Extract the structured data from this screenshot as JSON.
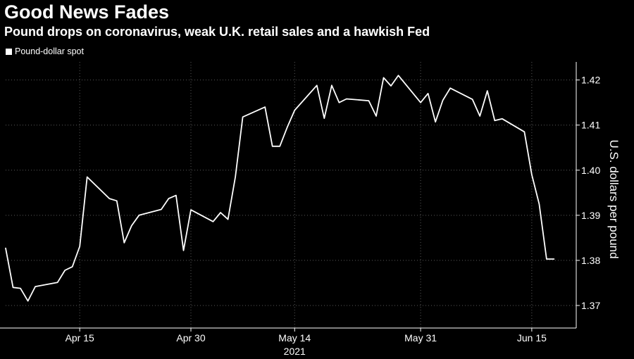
{
  "colors": {
    "background": "#000000",
    "line": "#ffffff",
    "grid": "#5a5a5a",
    "text": "#ffffff"
  },
  "chart_data": {
    "type": "line",
    "title": "Good News Fades",
    "subtitle": "Pound drops on coronavirus, weak U.K. retail sales and a hawkish Fed",
    "xlabel": "",
    "ylabel": "U.S. dollars per pound",
    "ylim": [
      1.365,
      1.424
    ],
    "y_ticks": [
      1.37,
      1.38,
      1.39,
      1.4,
      1.41,
      1.42
    ],
    "y_tick_labels": [
      "1.37",
      "1.38",
      "1.39",
      "1.40",
      "1.41",
      "1.42"
    ],
    "x_range": [
      "2021-04-05",
      "2021-06-21"
    ],
    "x_ticks": [
      {
        "date": "2021-04-15",
        "label": "Apr 15"
      },
      {
        "date": "2021-04-30",
        "label": "Apr 30"
      },
      {
        "date": "2021-05-14",
        "label": "May 14"
      },
      {
        "date": "2021-05-31",
        "label": "May 31"
      },
      {
        "date": "2021-06-15",
        "label": "Jun 15"
      }
    ],
    "x_year_label": "2021",
    "grid": true,
    "legend": "top-left",
    "series": [
      {
        "name": "Pound-dollar spot",
        "x": [
          "2021-04-05",
          "2021-04-06",
          "2021-04-07",
          "2021-04-08",
          "2021-04-09",
          "2021-04-12",
          "2021-04-13",
          "2021-04-14",
          "2021-04-15",
          "2021-04-16",
          "2021-04-19",
          "2021-04-20",
          "2021-04-21",
          "2021-04-22",
          "2021-04-23",
          "2021-04-26",
          "2021-04-27",
          "2021-04-28",
          "2021-04-29",
          "2021-04-30",
          "2021-05-03",
          "2021-05-04",
          "2021-05-05",
          "2021-05-06",
          "2021-05-07",
          "2021-05-10",
          "2021-05-11",
          "2021-05-12",
          "2021-05-13",
          "2021-05-14",
          "2021-05-17",
          "2021-05-18",
          "2021-05-19",
          "2021-05-20",
          "2021-05-21",
          "2021-05-24",
          "2021-05-25",
          "2021-05-26",
          "2021-05-27",
          "2021-05-28",
          "2021-05-31",
          "2021-06-01",
          "2021-06-02",
          "2021-06-03",
          "2021-06-04",
          "2021-06-07",
          "2021-06-08",
          "2021-06-09",
          "2021-06-10",
          "2021-06-11",
          "2021-06-14",
          "2021-06-15",
          "2021-06-16",
          "2021-06-17",
          "2021-06-18"
        ],
        "values": [
          1.3827,
          1.374,
          1.3738,
          1.371,
          1.3742,
          1.3751,
          1.3778,
          1.3786,
          1.3831,
          1.3985,
          1.3937,
          1.3932,
          1.3839,
          1.3877,
          1.39,
          1.3913,
          1.3937,
          1.3944,
          1.3822,
          1.3912,
          1.3886,
          1.3906,
          1.3891,
          1.3985,
          1.4118,
          1.414,
          1.4053,
          1.4053,
          1.4095,
          1.4133,
          1.4188,
          1.4115,
          1.4188,
          1.415,
          1.4158,
          1.4154,
          1.412,
          1.4205,
          1.4187,
          1.421,
          1.415,
          1.417,
          1.4107,
          1.4155,
          1.4182,
          1.4157,
          1.412,
          1.4176,
          1.411,
          1.4114,
          1.4085,
          1.399,
          1.3925,
          1.3803,
          1.3803
        ]
      }
    ]
  }
}
